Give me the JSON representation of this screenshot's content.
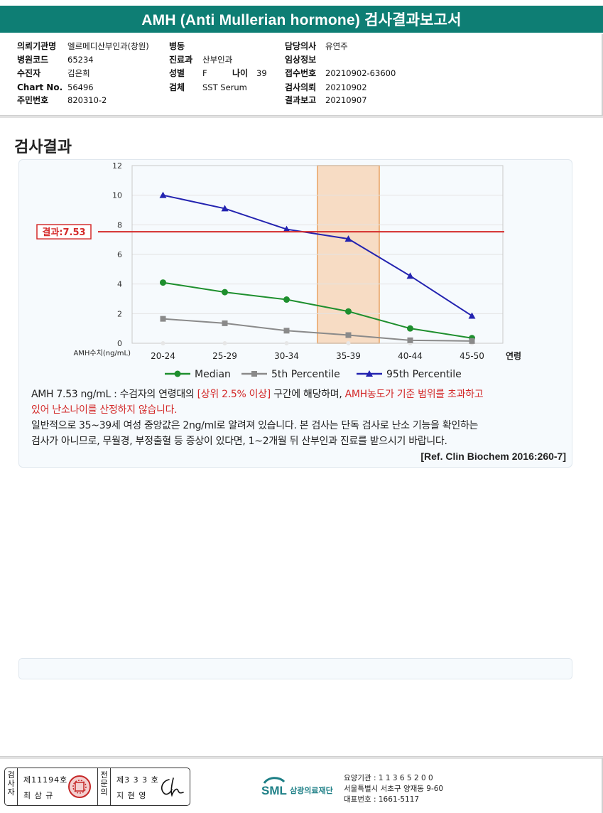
{
  "report": {
    "title": "AMH (Anti Mullerian hormone) 검사결과보고서"
  },
  "patient": {
    "hospital_label": "의뢰기관명",
    "hospital_value": "엘르메디산부인과(창원)",
    "code_label": "병원코드",
    "code_value": "65234",
    "name_label": "수진자",
    "name_value": "김은희",
    "chart_label": "Chart No.",
    "chart_value": "56496",
    "id_label": "주민번호",
    "id_value": "820310-2",
    "ward_label": "병동",
    "ward_value": "",
    "dept_label": "진료과",
    "dept_value": "산부인과",
    "sex_label": "성별",
    "sex_value": "F",
    "age_label": "나이",
    "age_value": "39",
    "specimen_label": "검체",
    "specimen_value": "SST Serum",
    "doctor_label": "담당의사",
    "doctor_value": "유연주",
    "clinical_label": "임상정보",
    "clinical_value": "",
    "receipt_label": "접수번호",
    "receipt_value": "20210902-63600",
    "request_label": "검사의뢰",
    "request_value": "20210902",
    "report_label": "결과보고",
    "report_value": "20210907"
  },
  "section": {
    "title": "검사결과"
  },
  "chart_data": {
    "type": "line",
    "title": "",
    "xlabel": "연령",
    "ylabel": "AMH수치(ng/mL)",
    "categories": [
      "20-24",
      "25-29",
      "30-34",
      "35-39",
      "40-44",
      "45-50"
    ],
    "ylim": [
      0,
      12
    ],
    "yticks": [
      "0",
      "2",
      "4",
      "6",
      "8",
      "10",
      "12"
    ],
    "grid": true,
    "legend_position": "bottom",
    "highlight_category": "35-39",
    "series": [
      {
        "name": "Median",
        "color": "#1e8f2e",
        "marker": "circle",
        "values": [
          4.1,
          3.45,
          2.95,
          2.15,
          1.0,
          0.35
        ]
      },
      {
        "name": "5th Percentile",
        "color": "#8a8a8a",
        "marker": "square",
        "values": [
          1.65,
          1.35,
          0.85,
          0.55,
          0.2,
          0.15
        ]
      },
      {
        "name": "95th Percentile",
        "color": "#2323b0",
        "marker": "triangle",
        "values": [
          10.0,
          9.1,
          7.7,
          7.05,
          4.55,
          1.85
        ]
      }
    ],
    "result_line": {
      "label": "결과:7.53",
      "value": 7.53,
      "color": "#d42a2a"
    },
    "highlight_color": "#f7dcc4"
  },
  "result": {
    "line1_a": "AMH  7.53 ng/mL : 수검자의 연령대의 ",
    "line1_b": "[상위 2.5% 이상]",
    "line1_c": " 구간에 해당하며, ",
    "line1_d": "AMH농도가 기준 범위를 초과하고",
    "line2": "있어 난소나이를 산정하지 않습니다.",
    "line3": "일반적으로 35~39세 여성 중앙값은 2ng/ml로 알려져 있습니다. 본 검사는 단독 검사로 난소 기능을 확인하는",
    "line4": "검사가 아니므로, 무월경, 부정출혈 등 증상이 있다면, 1~2개월 뒤 산부인과 진료를 받으시기 바랍니다.",
    "ref": "[Ref. Clin Biochem 2016:260-7]"
  },
  "footer": {
    "inspector_label": "검사자",
    "inspector_no": "제11194호",
    "inspector_name": "최 삼 규",
    "specialist_label": "전문의",
    "specialist_no": "제3 3 3 호",
    "specialist_name": "지 현 영",
    "org_logo": "SML",
    "org_name": "삼광의료재단",
    "org_code": "요양기관 : 1 1 3 6 5 2 0 0",
    "org_address": "서울특별시 서초구 양재동 9-60",
    "org_phone": "대표번호 : 1661-5117"
  }
}
